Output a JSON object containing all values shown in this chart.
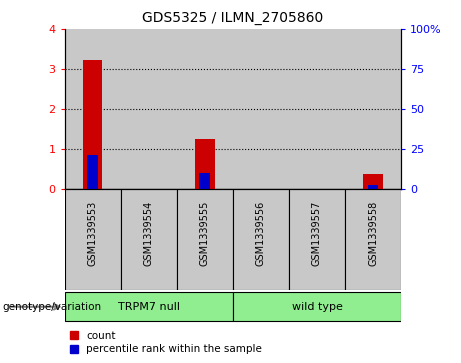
{
  "title": "GDS5325 / ILMN_2705860",
  "samples": [
    "GSM1339553",
    "GSM1339554",
    "GSM1339555",
    "GSM1339556",
    "GSM1339557",
    "GSM1339558"
  ],
  "count_values": [
    3.22,
    0.0,
    1.25,
    0.0,
    0.0,
    0.38
  ],
  "percentile_values": [
    0.84,
    0.0,
    0.4,
    0.0,
    0.0,
    0.1
  ],
  "ylim_left": [
    0,
    4
  ],
  "ylim_right": [
    0,
    100
  ],
  "yticks_left": [
    0,
    1,
    2,
    3,
    4
  ],
  "yticks_right": [
    0,
    25,
    50,
    75,
    100
  ],
  "yticklabels_right": [
    "0",
    "25",
    "50",
    "75",
    "100%"
  ],
  "groups": [
    {
      "label": "TRPM7 null",
      "indices": [
        0,
        1,
        2
      ],
      "color": "#90EE90"
    },
    {
      "label": "wild type",
      "indices": [
        3,
        4,
        5
      ],
      "color": "#90EE90"
    }
  ],
  "group_label_prefix": "genotype/variation",
  "bar_width": 0.35,
  "count_color": "#CC0000",
  "percentile_color": "#0000CC",
  "sample_bg_color": "#C8C8C8",
  "plot_bg_color": "#FFFFFF",
  "legend_items": [
    {
      "color": "#CC0000",
      "label": "count"
    },
    {
      "color": "#0000CC",
      "label": "percentile rank within the sample"
    }
  ]
}
